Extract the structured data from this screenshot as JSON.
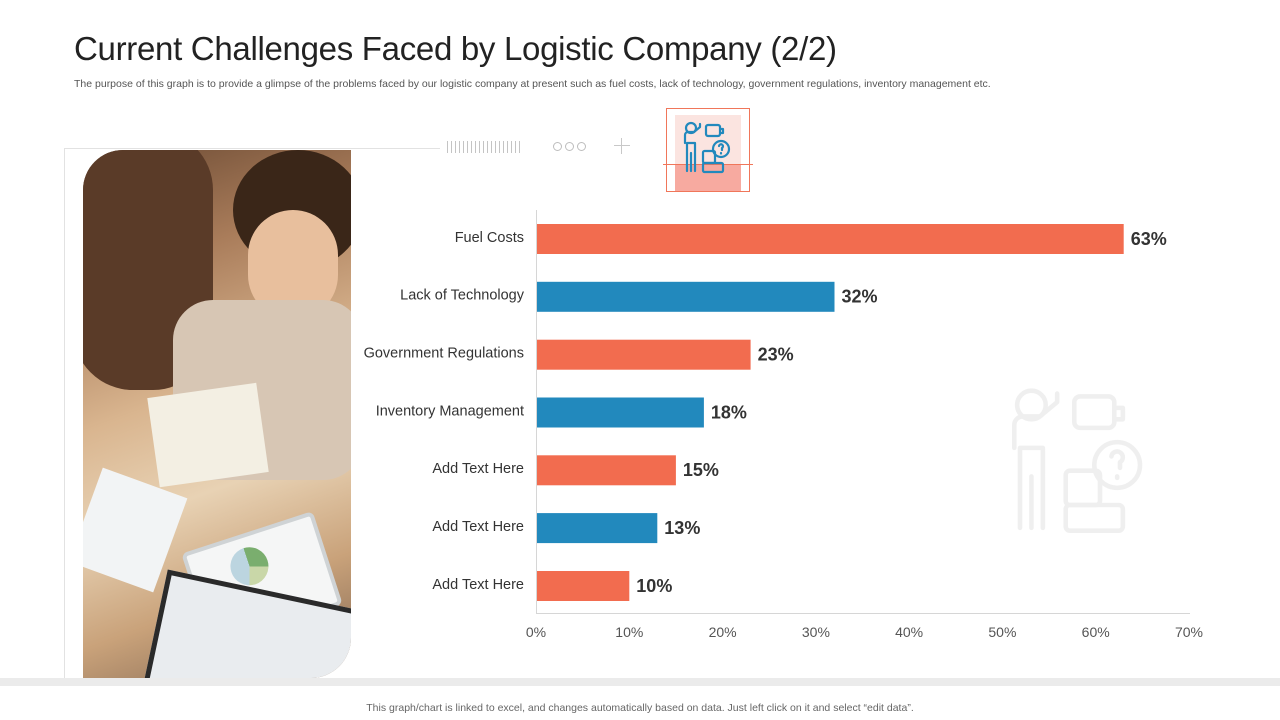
{
  "header": {
    "title": "Current Challenges Faced by Logistic Company (2/2)",
    "subtitle": "The purpose of this graph is to provide a glimpse of the problems faced by our logistic company at present such as fuel costs, lack of technology, government regulations, inventory management etc."
  },
  "footer": {
    "note": "This graph/chart is linked to excel, and changes automatically based on data. Just left click on it and select “edit data”."
  },
  "colors": {
    "coral": "#f26c4f",
    "blue": "#2289bd"
  },
  "icons": {
    "header_icon": "presenter-with-puzzle-icon",
    "watermark_icon": "presenter-with-puzzle-icon"
  },
  "photo": {
    "alt": "Team meeting at a table with charts"
  },
  "chart_data": {
    "type": "bar",
    "orientation": "horizontal",
    "categories": [
      "Fuel Costs",
      "Lack of Technology",
      "Government Regulations",
      "Inventory Management",
      "Add Text Here",
      "Add Text Here",
      "Add Text Here"
    ],
    "values": [
      63,
      32,
      23,
      18,
      15,
      13,
      10
    ],
    "value_labels": [
      "63%",
      "32%",
      "23%",
      "18%",
      "15%",
      "13%",
      "10%"
    ],
    "bar_colors": [
      "#f26c4f",
      "#2289bd",
      "#f26c4f",
      "#2289bd",
      "#f26c4f",
      "#2289bd",
      "#f26c4f"
    ],
    "xlim": [
      0,
      70
    ],
    "x_ticks": [
      0,
      10,
      20,
      30,
      40,
      50,
      60,
      70
    ],
    "x_tick_labels": [
      "0%",
      "10%",
      "20%",
      "30%",
      "40%",
      "50%",
      "60%",
      "70%"
    ],
    "title": "",
    "xlabel": "",
    "ylabel": "",
    "grid": false
  }
}
